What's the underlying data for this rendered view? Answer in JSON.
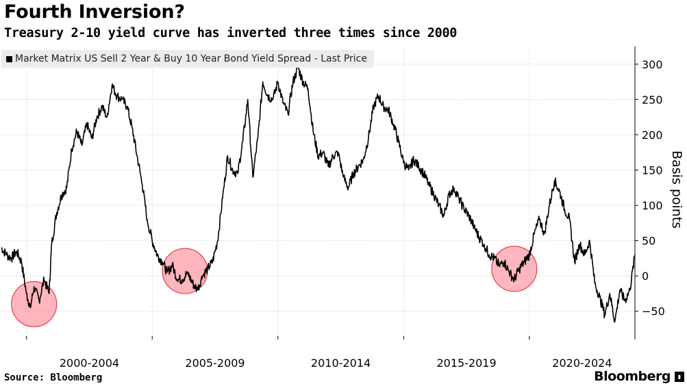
{
  "header": {
    "title": "Fourth Inversion?",
    "subtitle": "Treasury 2-10 yield curve has inverted three times since 2000"
  },
  "footer": {
    "source": "Source: Bloomberg",
    "brand": "Bloomberg",
    "brand_icon": "bloomberg-terminal-icon"
  },
  "colors": {
    "line": "#000000",
    "highlight_fill": "#ff8f9b",
    "highlight_stroke": "#e0202d",
    "grid": "#c8c8c8",
    "legend_bg": "#ececec"
  },
  "chart_data": {
    "type": "line",
    "title": "Fourth Inversion?",
    "subtitle": "Treasury 2-10 yield curve has inverted three times since 2000",
    "ylabel": "Basis points",
    "xlabel": "",
    "xlim": [
      1999.0,
      2024.2
    ],
    "ylim": [
      -90,
      325
    ],
    "yticks": [
      -50,
      0,
      50,
      100,
      150,
      200,
      250,
      300
    ],
    "yaxis_position": "right",
    "xtick_labels": [
      "2000-2004",
      "2005-2009",
      "2010-2014",
      "2015-2019",
      "2020-2024"
    ],
    "grid": true,
    "legend": "top-left",
    "series": [
      {
        "name": "Market Matrix US Sell 2 Year & Buy 10 Year Bond Yield Spread - Last Price",
        "x": [
          1999.0,
          1999.2,
          1999.4,
          1999.6,
          1999.8,
          2000.0,
          2000.15,
          2000.3,
          2000.5,
          2000.7,
          2000.9,
          2001.0,
          2001.2,
          2001.4,
          2001.6,
          2001.8,
          2002.0,
          2002.2,
          2002.4,
          2002.6,
          2002.8,
          2003.0,
          2003.2,
          2003.4,
          2003.6,
          2003.8,
          2004.0,
          2004.2,
          2004.4,
          2004.6,
          2004.8,
          2005.0,
          2005.2,
          2005.4,
          2005.6,
          2005.8,
          2006.0,
          2006.2,
          2006.4,
          2006.6,
          2006.8,
          2007.0,
          2007.2,
          2007.4,
          2007.6,
          2007.8,
          2008.0,
          2008.2,
          2008.4,
          2008.6,
          2008.8,
          2009.0,
          2009.2,
          2009.4,
          2009.6,
          2009.8,
          2010.0,
          2010.2,
          2010.4,
          2010.6,
          2010.8,
          2011.0,
          2011.2,
          2011.4,
          2011.6,
          2011.8,
          2012.0,
          2012.2,
          2012.4,
          2012.6,
          2012.8,
          2013.0,
          2013.2,
          2013.4,
          2013.6,
          2013.8,
          2014.0,
          2014.2,
          2014.4,
          2014.6,
          2014.8,
          2015.0,
          2015.2,
          2015.4,
          2015.6,
          2015.8,
          2016.0,
          2016.2,
          2016.4,
          2016.6,
          2016.8,
          2017.0,
          2017.2,
          2017.4,
          2017.6,
          2017.8,
          2018.0,
          2018.2,
          2018.4,
          2018.6,
          2018.8,
          2019.0,
          2019.2,
          2019.4,
          2019.6,
          2019.8,
          2020.0,
          2020.2,
          2020.4,
          2020.6,
          2020.8,
          2021.0,
          2021.2,
          2021.4,
          2021.6,
          2021.8,
          2022.0,
          2022.2,
          2022.4,
          2022.6,
          2022.8,
          2023.0,
          2023.2,
          2023.4,
          2023.6,
          2023.8,
          2024.0,
          2024.2
        ],
        "y": [
          40,
          30,
          25,
          35,
          20,
          -25,
          -45,
          -15,
          -35,
          -5,
          -25,
          45,
          90,
          115,
          125,
          180,
          205,
          185,
          215,
          195,
          225,
          240,
          225,
          270,
          255,
          250,
          240,
          210,
          170,
          130,
          80,
          50,
          30,
          20,
          5,
          15,
          -5,
          -5,
          5,
          -10,
          -20,
          0,
          10,
          20,
          50,
          110,
          170,
          150,
          145,
          190,
          250,
          140,
          195,
          275,
          255,
          250,
          275,
          245,
          230,
          275,
          295,
          275,
          265,
          205,
          170,
          175,
          155,
          170,
          175,
          140,
          125,
          145,
          155,
          165,
          195,
          240,
          255,
          240,
          235,
          215,
          190,
          160,
          150,
          165,
          155,
          145,
          130,
          115,
          100,
          85,
          115,
          125,
          110,
          95,
          85,
          70,
          55,
          45,
          30,
          25,
          15,
          20,
          5,
          -5,
          10,
          20,
          30,
          60,
          80,
          60,
          100,
          135,
          120,
          95,
          80,
          20,
          45,
          30,
          50,
          -10,
          -30,
          -55,
          -25,
          -65,
          -20,
          -35,
          -20,
          30
        ]
      }
    ],
    "highlights": [
      {
        "x": 2000.3,
        "y": -40
      },
      {
        "x": 2006.3,
        "y": 7
      },
      {
        "x": 2019.4,
        "y": 10
      }
    ]
  }
}
